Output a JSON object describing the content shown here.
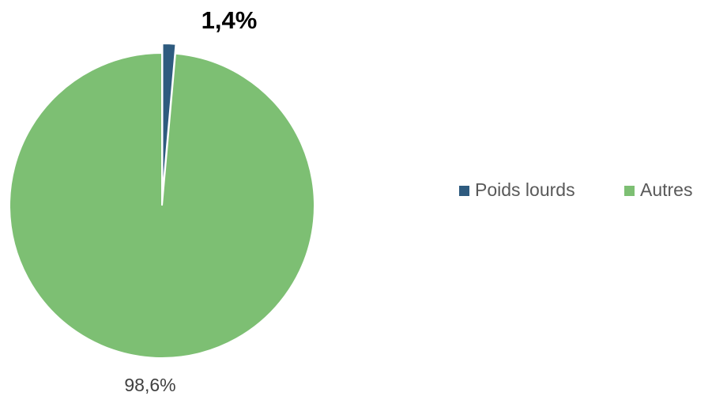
{
  "chart_data": {
    "type": "pie",
    "categories": [
      "Poids lourds",
      "Autres"
    ],
    "values": [
      1.4,
      98.6
    ],
    "value_labels": [
      "1,4%",
      "98,6%"
    ],
    "colors": [
      "#2e5b7f",
      "#7dbf73"
    ],
    "exploded": [
      true,
      false
    ],
    "legend": "right"
  }
}
